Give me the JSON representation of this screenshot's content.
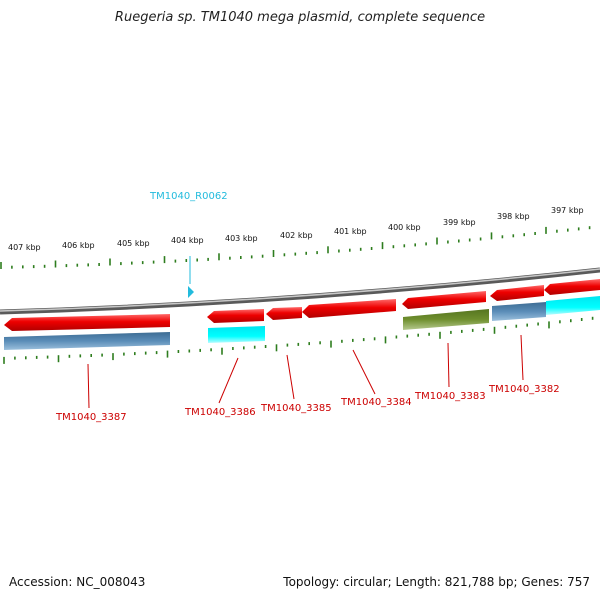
{
  "title": "Ruegeria sp. TM1040 mega plasmid, complete sequence",
  "footer": {
    "accession": "Accession: NC_008043",
    "summary": "Topology: circular; Length: 821,788 bp; Genes: 757"
  },
  "colors": {
    "gene_label": "#cc0000",
    "rna_label": "#22bbdd",
    "tick": "#2e7d1e",
    "backbone": "#888888"
  },
  "scale": [
    "407 kbp",
    "406 kbp",
    "405 kbp",
    "404 kbp",
    "403 kbp",
    "402 kbp",
    "401 kbp",
    "400 kbp",
    "399 kbp",
    "398 kbp",
    "397 kbp"
  ],
  "labels": {
    "rna": "TM1040_R0062",
    "genes": [
      "TM1040_3387",
      "TM1040_3386",
      "TM1040_3385",
      "TM1040_3384",
      "TM1040_3383",
      "TM1040_3382"
    ]
  }
}
